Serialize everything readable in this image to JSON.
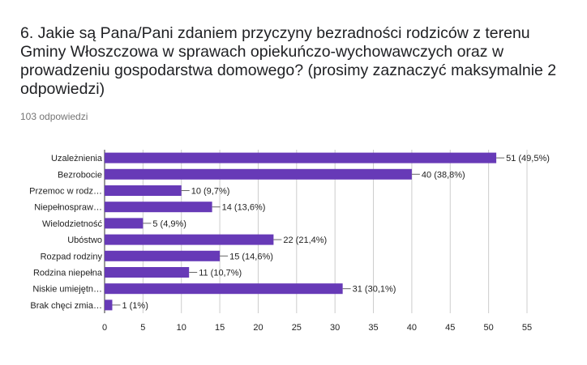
{
  "question": {
    "title": "6. Jakie są Pana/Pani zdaniem przyczyny bezradności rodziców z terenu Gminy Włoszczowa w sprawach opiekuńczo-wychowawczych oraz w prowadzeniu gospodarstwa domowego? (prosimy zaznaczyć maksymalnie 2 odpowiedzi)",
    "response_count": "103 odpowiedzi"
  },
  "colors": {
    "bar": "#673ab7",
    "grid": "#cccccc",
    "axis": "#333333",
    "leader": "#666666"
  },
  "chart_data": {
    "type": "bar",
    "orientation": "horizontal",
    "categories": [
      "Uzależnienia",
      "Bezrobocie",
      "Przemoc w rodz…",
      "Niepełnospraw…",
      "Wielodzietność",
      "Ubóstwo",
      "Rozpad rodziny",
      "Rodzina niepełna",
      "Niskie umiejętn…",
      "Brak chęci zmia…"
    ],
    "values": [
      51,
      40,
      10,
      14,
      5,
      22,
      15,
      11,
      31,
      1
    ],
    "data_labels": [
      "51 (49,5%)",
      "40 (38,8%)",
      "10 (9,7%)",
      "14 (13,6%)",
      "5 (4,9%)",
      "22 (21,4%)",
      "15 (14,6%)",
      "11 (10,7%)",
      "31 (30,1%)",
      "1 (1%)"
    ],
    "xlim": [
      0,
      55
    ],
    "xticks": [
      "0",
      "5",
      "10",
      "15",
      "20",
      "25",
      "30",
      "35",
      "40",
      "45",
      "50",
      "55"
    ],
    "grid": true,
    "legend": "none"
  }
}
